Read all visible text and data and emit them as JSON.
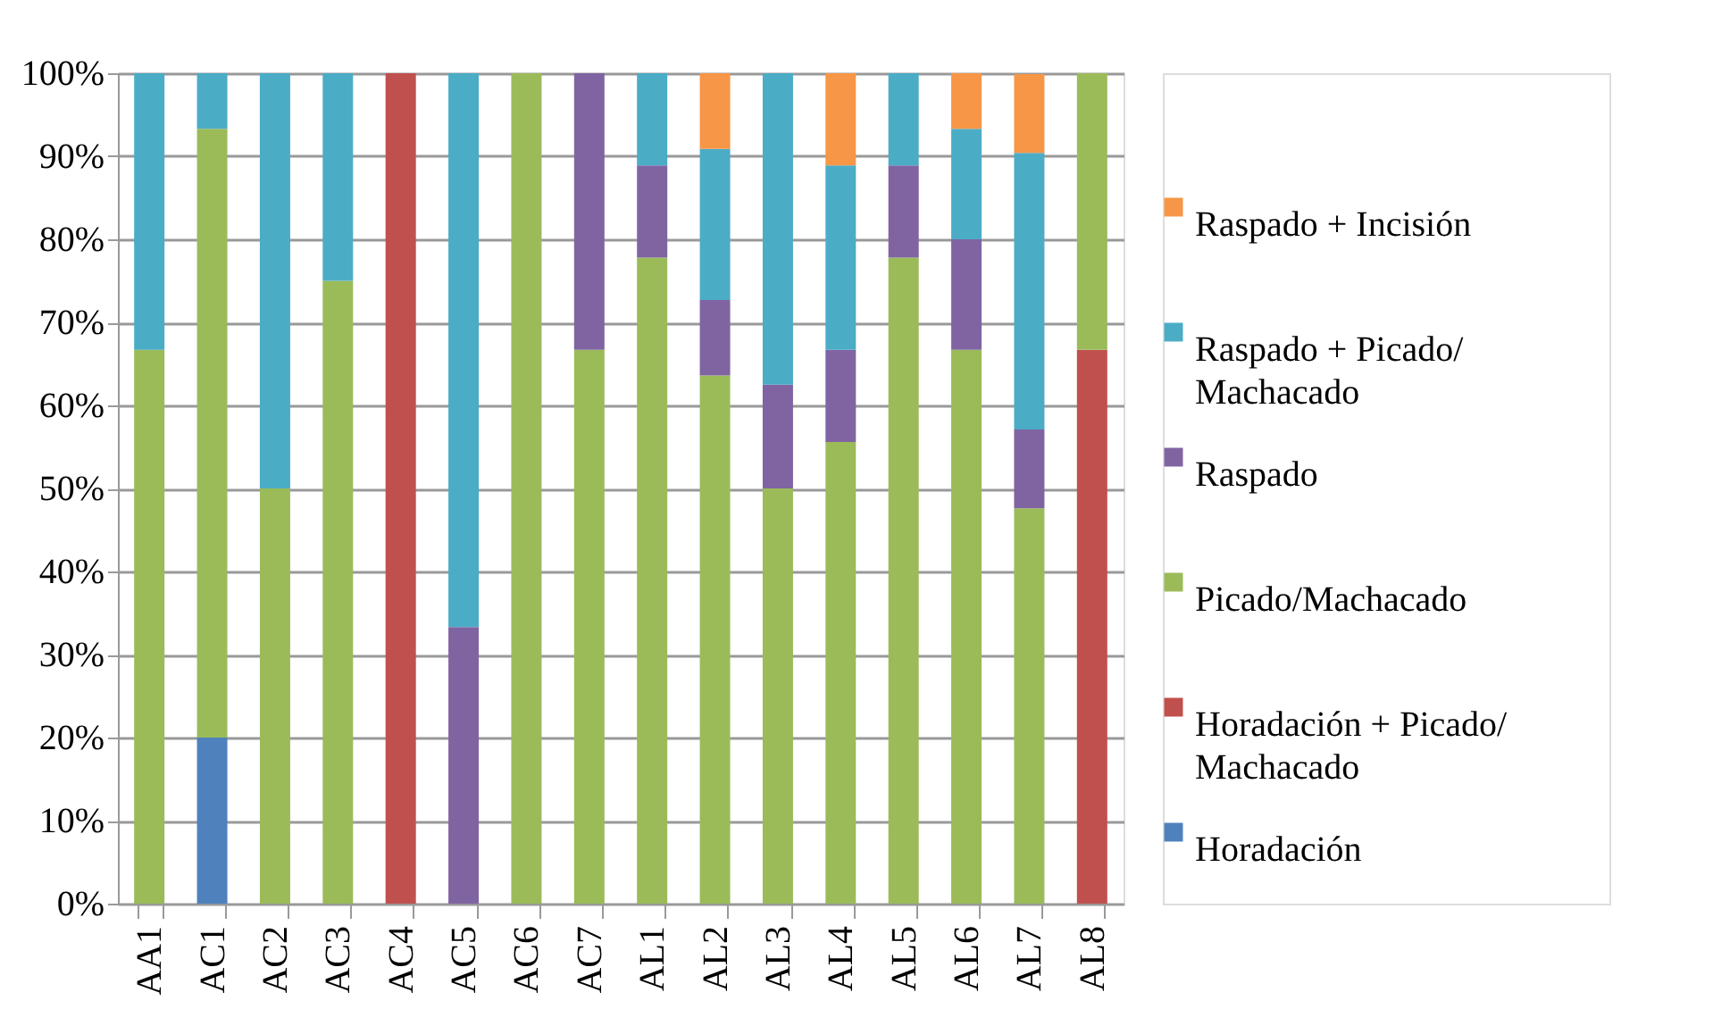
{
  "chart_data": {
    "type": "bar",
    "stacked": true,
    "categories": [
      "AA1",
      "AC1",
      "AC2",
      "AC3",
      "AC4",
      "AC5",
      "AC6",
      "AC7",
      "AL1",
      "AL2",
      "AL3",
      "AL4",
      "AL5",
      "AL6",
      "AL7",
      "AL8"
    ],
    "series": [
      {
        "name": "Horadación",
        "color": "#4f81bd",
        "values": [
          0,
          20,
          0,
          0,
          0,
          0,
          0,
          0,
          0,
          0,
          0,
          0,
          0,
          0,
          0,
          0
        ]
      },
      {
        "name": "Horadación + Picado/ Machacado",
        "color": "#c0504d",
        "values": [
          0,
          0,
          0,
          0,
          100,
          0,
          0,
          0,
          0,
          0,
          0,
          0,
          0,
          0,
          0,
          66.7
        ]
      },
      {
        "name": "Picado/Machacado",
        "color": "#9bbb59",
        "values": [
          66.7,
          73.3,
          50,
          75,
          0,
          0,
          100,
          66.7,
          77.8,
          63.6,
          50,
          55.6,
          77.8,
          66.7,
          47.6,
          33.3
        ]
      },
      {
        "name": "Raspado",
        "color": "#8064a2",
        "values": [
          0,
          0,
          0,
          0,
          0,
          33.3,
          0,
          33.3,
          11.1,
          9.1,
          12.5,
          11.1,
          11.1,
          13.3,
          9.5,
          0
        ]
      },
      {
        "name": "Raspado + Picado/ Machacado",
        "color": "#4bacc6",
        "values": [
          33.3,
          6.7,
          50,
          25,
          0,
          66.7,
          0,
          0,
          11.1,
          18.2,
          37.5,
          22.2,
          11.1,
          13.3,
          33.3,
          0
        ]
      },
      {
        "name": "Raspado + Incisión",
        "color": "#f79646",
        "values": [
          0,
          0,
          0,
          0,
          0,
          0,
          0,
          0,
          0,
          9.1,
          0,
          11.1,
          0,
          6.7,
          9.5,
          0
        ]
      }
    ],
    "ylim": [
      0,
      100
    ],
    "yticks": [
      {
        "value": 0,
        "label": "0%"
      },
      {
        "value": 10,
        "label": "10%"
      },
      {
        "value": 20,
        "label": "20%"
      },
      {
        "value": 30,
        "label": "30%"
      },
      {
        "value": 40,
        "label": "40%"
      },
      {
        "value": 50,
        "label": "50%"
      },
      {
        "value": 60,
        "label": "60%"
      },
      {
        "value": 70,
        "label": "70%"
      },
      {
        "value": 80,
        "label": "80%"
      },
      {
        "value": 90,
        "label": "90%"
      },
      {
        "value": 100,
        "label": "100%"
      }
    ],
    "grid": "y",
    "legend": "right"
  }
}
